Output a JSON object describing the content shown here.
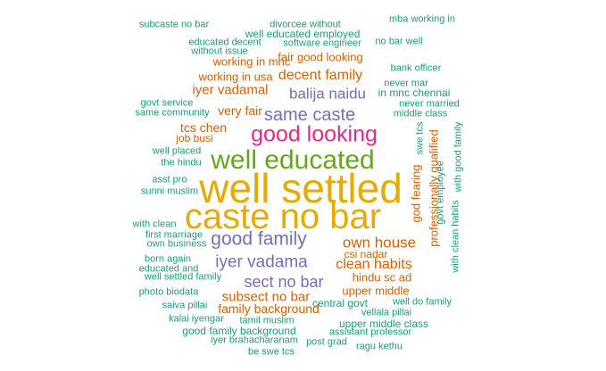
{
  "colors": {
    "teal": "#1b9e77",
    "orange": "#d95f02",
    "purple": "#7570b3",
    "magenta": "#e7298a",
    "green": "#66a61e",
    "gold": "#e6ab02"
  },
  "words": [
    {
      "id": 0,
      "text": "well settled",
      "color": "gold"
    },
    {
      "id": 1,
      "text": "caste no bar",
      "color": "gold"
    },
    {
      "id": 2,
      "text": "well educated",
      "color": "green"
    },
    {
      "id": 3,
      "text": "good looking",
      "color": "magenta"
    },
    {
      "id": 4,
      "text": "good family",
      "color": "purple"
    },
    {
      "id": 5,
      "text": "same caste",
      "color": "purple"
    },
    {
      "id": 6,
      "text": "iyer vadama",
      "color": "purple"
    },
    {
      "id": 7,
      "text": "balija naidu",
      "color": "purple"
    },
    {
      "id": 8,
      "text": "sect no bar",
      "color": "purple"
    },
    {
      "id": 9,
      "text": "own house",
      "color": "orange"
    },
    {
      "id": 10,
      "text": "clean habits",
      "color": "orange"
    },
    {
      "id": 11,
      "text": "decent family",
      "color": "orange"
    },
    {
      "id": 12,
      "text": "iyer vadamal",
      "color": "orange"
    },
    {
      "id": 13,
      "text": "subsect no bar",
      "color": "orange"
    },
    {
      "id": 14,
      "text": "tcs chen",
      "color": "orange"
    },
    {
      "id": 15,
      "text": "very fair",
      "color": "orange"
    },
    {
      "id": 16,
      "text": "family background",
      "color": "orange"
    },
    {
      "id": 17,
      "text": "fair good looking",
      "color": "orange"
    },
    {
      "id": 18,
      "text": "working in mnc",
      "color": "orange"
    },
    {
      "id": 19,
      "text": "working in usa",
      "color": "orange"
    },
    {
      "id": 20,
      "text": "job busi",
      "color": "orange"
    },
    {
      "id": 21,
      "text": "upper middle",
      "color": "orange"
    },
    {
      "id": 22,
      "text": "csi nadar",
      "color": "orange"
    },
    {
      "id": 23,
      "text": "hindu sc ad",
      "color": "orange"
    },
    {
      "id": 24,
      "text": "god fearing",
      "color": "orange"
    },
    {
      "id": 25,
      "text": "professionally qualified",
      "color": "orange"
    },
    {
      "id": 26,
      "text": "subcaste no bar",
      "color": "teal"
    },
    {
      "id": 27,
      "text": "divorcee without",
      "color": "teal"
    },
    {
      "id": 28,
      "text": "mba working in",
      "color": "teal"
    },
    {
      "id": 29,
      "text": "well educated employed",
      "color": "teal"
    },
    {
      "id": 30,
      "text": "educated decent",
      "color": "teal"
    },
    {
      "id": 31,
      "text": "software engineer",
      "color": "teal"
    },
    {
      "id": 32,
      "text": "no bar well",
      "color": "teal"
    },
    {
      "id": 33,
      "text": "without issue",
      "color": "teal"
    },
    {
      "id": 34,
      "text": "bank officer",
      "color": "teal"
    },
    {
      "id": 35,
      "text": "never mar",
      "color": "teal"
    },
    {
      "id": 36,
      "text": "in mnc chennai",
      "color": "teal"
    },
    {
      "id": 37,
      "text": "govt service",
      "color": "teal"
    },
    {
      "id": 38,
      "text": "never married",
      "color": "teal"
    },
    {
      "id": 39,
      "text": "same community",
      "color": "teal"
    },
    {
      "id": 40,
      "text": "middle class",
      "color": "teal"
    },
    {
      "id": 41,
      "text": "well placed",
      "color": "teal"
    },
    {
      "id": 42,
      "text": "the hindu",
      "color": "teal"
    },
    {
      "id": 43,
      "text": "asst pro",
      "color": "teal"
    },
    {
      "id": 44,
      "text": "sunni muslim",
      "color": "teal"
    },
    {
      "id": 45,
      "text": "with clean",
      "color": "teal"
    },
    {
      "id": 46,
      "text": "first marriage",
      "color": "teal"
    },
    {
      "id": 47,
      "text": "own business",
      "color": "teal"
    },
    {
      "id": 48,
      "text": "born again",
      "color": "teal"
    },
    {
      "id": 49,
      "text": "educated and",
      "color": "teal"
    },
    {
      "id": 50,
      "text": "well settled family",
      "color": "teal"
    },
    {
      "id": 51,
      "text": "photo biodata",
      "color": "teal"
    },
    {
      "id": 52,
      "text": "saiva pillai",
      "color": "teal"
    },
    {
      "id": 53,
      "text": "kalai iyengar",
      "color": "teal"
    },
    {
      "id": 54,
      "text": "tamil muslim",
      "color": "teal"
    },
    {
      "id": 55,
      "text": "good family background",
      "color": "teal"
    },
    {
      "id": 56,
      "text": "iyer brahacharanam",
      "color": "teal"
    },
    {
      "id": 57,
      "text": "be swe tcs",
      "color": "teal"
    },
    {
      "id": 58,
      "text": "post grad",
      "color": "teal"
    },
    {
      "id": 59,
      "text": "ragu kethu",
      "color": "teal"
    },
    {
      "id": 60,
      "text": "assistant professor",
      "color": "teal"
    },
    {
      "id": 61,
      "text": "upper middle class",
      "color": "teal"
    },
    {
      "id": 62,
      "text": "vellala pillai",
      "color": "teal"
    },
    {
      "id": 63,
      "text": "central govt",
      "color": "teal"
    },
    {
      "id": 64,
      "text": "well do family",
      "color": "teal"
    },
    {
      "id": 65,
      "text": "swe tcs",
      "color": "teal"
    },
    {
      "id": 66,
      "text": "govt employee",
      "color": "teal"
    },
    {
      "id": 67,
      "text": "with clean habits",
      "color": "teal"
    },
    {
      "id": 68,
      "text": "with good family",
      "color": "teal"
    }
  ]
}
